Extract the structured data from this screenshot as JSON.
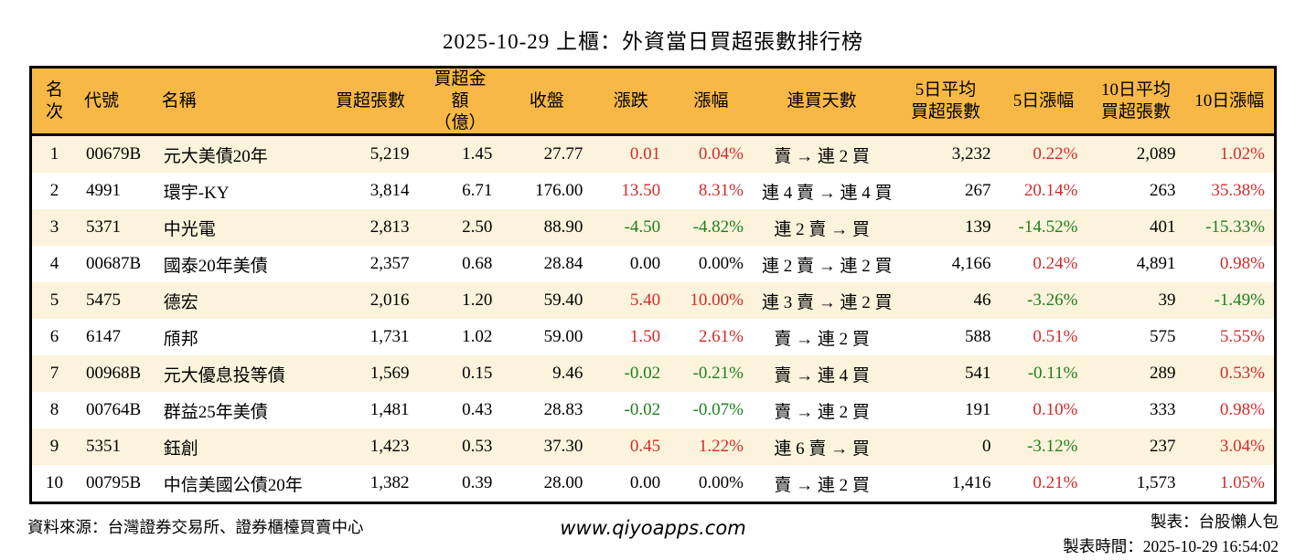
{
  "title": "2025-10-29 上櫃：外資當日買超張數排行榜",
  "colors": {
    "header_bg": "#f7b845",
    "row_alt_bg": "#fcf3dc",
    "up_red": "#d02c2c",
    "down_green": "#1e7e1e",
    "border": "#000000"
  },
  "table": {
    "columns": [
      {
        "key": "rank",
        "label": "名次",
        "label2": "",
        "align": "center"
      },
      {
        "key": "code",
        "label": "代號",
        "label2": "",
        "align": "left"
      },
      {
        "key": "name",
        "label": "名稱",
        "label2": "",
        "align": "left"
      },
      {
        "key": "net_buy",
        "label": "買超張數",
        "label2": "",
        "align": "right"
      },
      {
        "key": "amount",
        "label": "買超金額",
        "label2": "（億）",
        "align": "right"
      },
      {
        "key": "close",
        "label": "收盤",
        "label2": "",
        "align": "right"
      },
      {
        "key": "change",
        "label": "漲跌",
        "label2": "",
        "align": "right"
      },
      {
        "key": "change_pct",
        "label": "漲幅",
        "label2": "",
        "align": "right"
      },
      {
        "key": "streak",
        "label": "連買天數",
        "label2": "",
        "align": "center"
      },
      {
        "key": "avg5",
        "label": "5日平均",
        "label2": "買超張數",
        "align": "right"
      },
      {
        "key": "pct5",
        "label": "5日漲幅",
        "label2": "",
        "align": "right"
      },
      {
        "key": "avg10",
        "label": "10日平均",
        "label2": "買超張數",
        "align": "right"
      },
      {
        "key": "pct10",
        "label": "10日漲幅",
        "label2": "",
        "align": "right"
      }
    ],
    "rows": [
      {
        "rank": "1",
        "code": "00679B",
        "name": "元大美債20年",
        "net_buy": "5,219",
        "amount": "1.45",
        "close": "27.77",
        "change": "0.01",
        "change_pct": "0.04%",
        "streak": "賣 → 連 2 買",
        "avg5": "3,232",
        "pct5": "0.22%",
        "avg10": "2,089",
        "pct10": "1.02%",
        "cell_colors": {
          "change": "up",
          "change_pct": "up",
          "pct5": "up",
          "pct10": "up"
        }
      },
      {
        "rank": "2",
        "code": "4991",
        "name": "環宇-KY",
        "net_buy": "3,814",
        "amount": "6.71",
        "close": "176.00",
        "change": "13.50",
        "change_pct": "8.31%",
        "streak": "連 4 賣 → 連 4 買",
        "avg5": "267",
        "pct5": "20.14%",
        "avg10": "263",
        "pct10": "35.38%",
        "cell_colors": {
          "change": "up",
          "change_pct": "up",
          "pct5": "up",
          "pct10": "up"
        }
      },
      {
        "rank": "3",
        "code": "5371",
        "name": "中光電",
        "net_buy": "2,813",
        "amount": "2.50",
        "close": "88.90",
        "change": "-4.50",
        "change_pct": "-4.82%",
        "streak": "連 2 賣 → 買",
        "avg5": "139",
        "pct5": "-14.52%",
        "avg10": "401",
        "pct10": "-15.33%",
        "cell_colors": {
          "change": "down",
          "change_pct": "down",
          "pct5": "down",
          "pct10": "down"
        }
      },
      {
        "rank": "4",
        "code": "00687B",
        "name": "國泰20年美債",
        "net_buy": "2,357",
        "amount": "0.68",
        "close": "28.84",
        "change": "0.00",
        "change_pct": "0.00%",
        "streak": "連 2 賣 → 連 2 買",
        "avg5": "4,166",
        "pct5": "0.24%",
        "avg10": "4,891",
        "pct10": "0.98%",
        "cell_colors": {
          "pct5": "up",
          "pct10": "up"
        }
      },
      {
        "rank": "5",
        "code": "5475",
        "name": "德宏",
        "net_buy": "2,016",
        "amount": "1.20",
        "close": "59.40",
        "change": "5.40",
        "change_pct": "10.00%",
        "streak": "連 3 賣 → 連 2 買",
        "avg5": "46",
        "pct5": "-3.26%",
        "avg10": "39",
        "pct10": "-1.49%",
        "cell_colors": {
          "change": "up",
          "change_pct": "up",
          "pct5": "down",
          "pct10": "down"
        }
      },
      {
        "rank": "6",
        "code": "6147",
        "name": "頎邦",
        "net_buy": "1,731",
        "amount": "1.02",
        "close": "59.00",
        "change": "1.50",
        "change_pct": "2.61%",
        "streak": "賣 → 連 2 買",
        "avg5": "588",
        "pct5": "0.51%",
        "avg10": "575",
        "pct10": "5.55%",
        "cell_colors": {
          "change": "up",
          "change_pct": "up",
          "pct5": "up",
          "pct10": "up"
        }
      },
      {
        "rank": "7",
        "code": "00968B",
        "name": "元大優息投等債",
        "net_buy": "1,569",
        "amount": "0.15",
        "close": "9.46",
        "change": "-0.02",
        "change_pct": "-0.21%",
        "streak": "賣 → 連 4 買",
        "avg5": "541",
        "pct5": "-0.11%",
        "avg10": "289",
        "pct10": "0.53%",
        "cell_colors": {
          "change": "down",
          "change_pct": "down",
          "pct5": "down",
          "pct10": "up"
        }
      },
      {
        "rank": "8",
        "code": "00764B",
        "name": "群益25年美債",
        "net_buy": "1,481",
        "amount": "0.43",
        "close": "28.83",
        "change": "-0.02",
        "change_pct": "-0.07%",
        "streak": "賣 → 連 2 買",
        "avg5": "191",
        "pct5": "0.10%",
        "avg10": "333",
        "pct10": "0.98%",
        "cell_colors": {
          "change": "down",
          "change_pct": "down",
          "pct5": "up",
          "pct10": "up"
        }
      },
      {
        "rank": "9",
        "code": "5351",
        "name": "鈺創",
        "net_buy": "1,423",
        "amount": "0.53",
        "close": "37.30",
        "change": "0.45",
        "change_pct": "1.22%",
        "streak": "連 6 賣 → 買",
        "avg5": "0",
        "pct5": "-3.12%",
        "avg10": "237",
        "pct10": "3.04%",
        "cell_colors": {
          "change": "up",
          "change_pct": "up",
          "pct5": "down",
          "pct10": "up"
        }
      },
      {
        "rank": "10",
        "code": "00795B",
        "name": "中信美國公債20年",
        "net_buy": "1,382",
        "amount": "0.39",
        "close": "28.00",
        "change": "0.00",
        "change_pct": "0.00%",
        "streak": "賣 → 連 2 買",
        "avg5": "1,416",
        "pct5": "0.21%",
        "avg10": "1,573",
        "pct10": "1.05%",
        "cell_colors": {
          "pct5": "up",
          "pct10": "up"
        }
      }
    ]
  },
  "footer": {
    "source": "資料來源：台灣證券交易所、證券櫃檯買賣中心",
    "website": "www.qiyoapps.com",
    "credit": "製表：台股懶人包",
    "generated": "製表時間：2025-10-29 16:54:02"
  }
}
